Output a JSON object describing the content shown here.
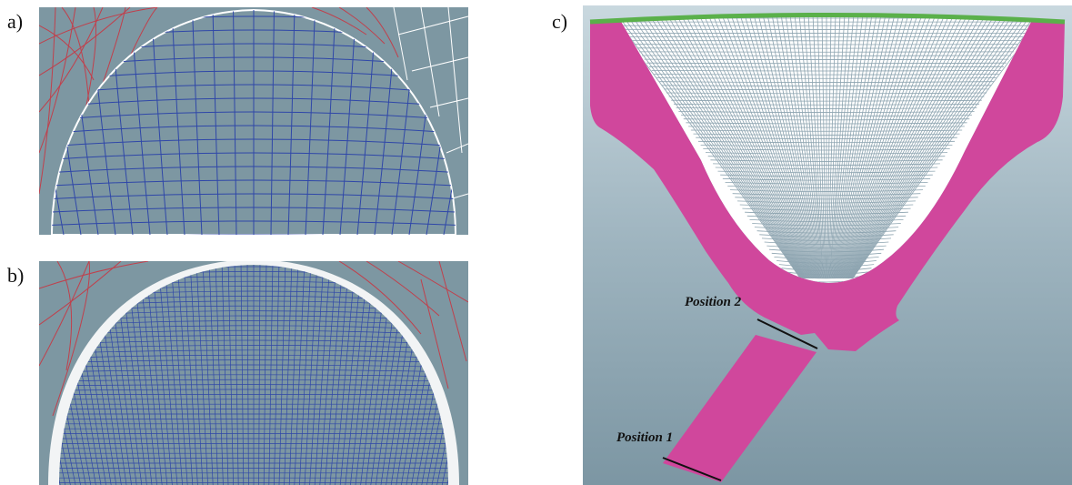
{
  "panels": {
    "a": {
      "label": "a)"
    },
    "b": {
      "label": "b)"
    },
    "c": {
      "label": "c)"
    }
  },
  "annotations": {
    "position_2": "Position 2",
    "position_1": "Position 1"
  },
  "colors": {
    "background_blue": "#7d97a2",
    "mesh_red": "#c0404c",
    "mesh_blue": "#2f47a8",
    "mesh_white": "#ffffff",
    "magenta": "#d0479c",
    "top_rim": "#5ab04a"
  }
}
